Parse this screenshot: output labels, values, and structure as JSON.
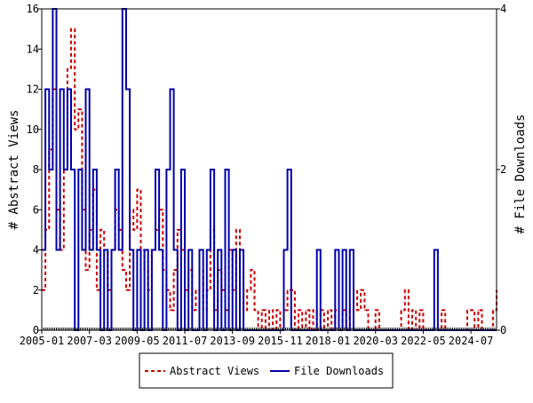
{
  "chart_data": {
    "type": "line",
    "title": "",
    "x_tick_labels": [
      "2005-01",
      "2007-03",
      "2009-05",
      "2011-07",
      "2013-09",
      "2015-11",
      "2018-01",
      "2020-03",
      "2022-05",
      "2024-07"
    ],
    "x_range": [
      "2005-01",
      "2025-09"
    ],
    "ylabel_left": "# Abstract Views",
    "ylabel_right": "# File Downloads",
    "ylim_left": [
      0,
      16
    ],
    "yticks_left": [
      0,
      2,
      4,
      6,
      8,
      10,
      12,
      14,
      16
    ],
    "ylim_right": [
      0,
      4
    ],
    "yticks_right": [
      0,
      2,
      4
    ],
    "grid": false,
    "legend_position": "bottom",
    "series": [
      {
        "name": "Abstract Views",
        "axis": "left",
        "color": "#cc0000",
        "style": "dashed",
        "points": [
          [
            "2005-01",
            2
          ],
          [
            "2005-03",
            5
          ],
          [
            "2005-05",
            9
          ],
          [
            "2005-07",
            12
          ],
          [
            "2005-09",
            6
          ],
          [
            "2005-11",
            4
          ],
          [
            "2006-01",
            8
          ],
          [
            "2006-03",
            13
          ],
          [
            "2006-05",
            15
          ],
          [
            "2006-07",
            10
          ],
          [
            "2006-09",
            11
          ],
          [
            "2006-11",
            6
          ],
          [
            "2007-01",
            3
          ],
          [
            "2007-03",
            5
          ],
          [
            "2007-05",
            7
          ],
          [
            "2007-07",
            2
          ],
          [
            "2007-09",
            5
          ],
          [
            "2007-11",
            4
          ],
          [
            "2008-01",
            2
          ],
          [
            "2008-03",
            4
          ],
          [
            "2008-05",
            6
          ],
          [
            "2008-07",
            5
          ],
          [
            "2008-09",
            3
          ],
          [
            "2008-11",
            2
          ],
          [
            "2009-01",
            6
          ],
          [
            "2009-03",
            5
          ],
          [
            "2009-05",
            7
          ],
          [
            "2009-07",
            4
          ],
          [
            "2009-09",
            3
          ],
          [
            "2009-11",
            2
          ],
          [
            "2010-01",
            4
          ],
          [
            "2010-03",
            5
          ],
          [
            "2010-05",
            6
          ],
          [
            "2010-07",
            3
          ],
          [
            "2010-09",
            2
          ],
          [
            "2010-11",
            1
          ],
          [
            "2011-01",
            3
          ],
          [
            "2011-03",
            5
          ],
          [
            "2011-05",
            4
          ],
          [
            "2011-07",
            2
          ],
          [
            "2011-09",
            3
          ],
          [
            "2011-11",
            1
          ],
          [
            "2012-01",
            2
          ],
          [
            "2012-03",
            3
          ],
          [
            "2012-05",
            1
          ],
          [
            "2012-07",
            2
          ],
          [
            "2012-09",
            5
          ],
          [
            "2012-11",
            1
          ],
          [
            "2013-01",
            3
          ],
          [
            "2013-03",
            2
          ],
          [
            "2013-05",
            1
          ],
          [
            "2013-07",
            4
          ],
          [
            "2013-09",
            2
          ],
          [
            "2013-11",
            5
          ],
          [
            "2014-01",
            3
          ],
          [
            "2014-03",
            1
          ],
          [
            "2014-05",
            2
          ],
          [
            "2014-07",
            3
          ],
          [
            "2014-09",
            1
          ],
          [
            "2014-11",
            0
          ],
          [
            "2015-01",
            1
          ],
          [
            "2015-03",
            0
          ],
          [
            "2015-05",
            1
          ],
          [
            "2015-07",
            0
          ],
          [
            "2015-09",
            1
          ],
          [
            "2015-11",
            0
          ],
          [
            "2016-01",
            1
          ],
          [
            "2016-03",
            2
          ],
          [
            "2016-05",
            2
          ],
          [
            "2016-07",
            0
          ],
          [
            "2016-09",
            1
          ],
          [
            "2016-11",
            0
          ],
          [
            "2017-01",
            1
          ],
          [
            "2017-03",
            0
          ],
          [
            "2017-05",
            1
          ],
          [
            "2017-07",
            0
          ],
          [
            "2017-09",
            1
          ],
          [
            "2017-11",
            0
          ],
          [
            "2018-01",
            1
          ],
          [
            "2018-03",
            0
          ],
          [
            "2018-05",
            1
          ],
          [
            "2018-07",
            0
          ],
          [
            "2018-09",
            1
          ],
          [
            "2018-11",
            0
          ],
          [
            "2019-01",
            1
          ],
          [
            "2019-03",
            2
          ],
          [
            "2019-05",
            1
          ],
          [
            "2019-07",
            2
          ],
          [
            "2019-09",
            1
          ],
          [
            "2019-11",
            0
          ],
          [
            "2020-01",
            0
          ],
          [
            "2020-03",
            1
          ],
          [
            "2020-05",
            0
          ],
          [
            "2020-07",
            0
          ],
          [
            "2020-09",
            0
          ],
          [
            "2020-11",
            0
          ],
          [
            "2021-01",
            0
          ],
          [
            "2021-03",
            0
          ],
          [
            "2021-05",
            1
          ],
          [
            "2021-07",
            2
          ],
          [
            "2021-09",
            0
          ],
          [
            "2021-11",
            1
          ],
          [
            "2022-01",
            0
          ],
          [
            "2022-03",
            1
          ],
          [
            "2022-05",
            0
          ],
          [
            "2022-07",
            0
          ],
          [
            "2022-09",
            0
          ],
          [
            "2022-11",
            0
          ],
          [
            "2023-01",
            0
          ],
          [
            "2023-03",
            1
          ],
          [
            "2023-05",
            0
          ],
          [
            "2023-07",
            0
          ],
          [
            "2023-09",
            0
          ],
          [
            "2023-11",
            0
          ],
          [
            "2024-01",
            0
          ],
          [
            "2024-03",
            0
          ],
          [
            "2024-05",
            1
          ],
          [
            "2024-07",
            1
          ],
          [
            "2024-09",
            0
          ],
          [
            "2024-11",
            1
          ],
          [
            "2025-01",
            0
          ],
          [
            "2025-03",
            0
          ],
          [
            "2025-05",
            0
          ],
          [
            "2025-07",
            1
          ],
          [
            "2025-09",
            2
          ]
        ]
      },
      {
        "name": "File Downloads",
        "axis": "right",
        "color": "#0000aa",
        "style": "solid",
        "points": [
          [
            "2005-01",
            1
          ],
          [
            "2005-03",
            3
          ],
          [
            "2005-05",
            2
          ],
          [
            "2005-07",
            4
          ],
          [
            "2005-09",
            1
          ],
          [
            "2005-11",
            3
          ],
          [
            "2006-01",
            2
          ],
          [
            "2006-03",
            3
          ],
          [
            "2006-05",
            2
          ],
          [
            "2006-07",
            0
          ],
          [
            "2006-09",
            2
          ],
          [
            "2006-11",
            1
          ],
          [
            "2007-01",
            3
          ],
          [
            "2007-03",
            1
          ],
          [
            "2007-05",
            2
          ],
          [
            "2007-07",
            1
          ],
          [
            "2007-09",
            0
          ],
          [
            "2007-11",
            1
          ],
          [
            "2008-01",
            0
          ],
          [
            "2008-03",
            1
          ],
          [
            "2008-05",
            2
          ],
          [
            "2008-07",
            1
          ],
          [
            "2008-09",
            4
          ],
          [
            "2008-11",
            3
          ],
          [
            "2009-01",
            1
          ],
          [
            "2009-03",
            0
          ],
          [
            "2009-05",
            1
          ],
          [
            "2009-07",
            0
          ],
          [
            "2009-09",
            1
          ],
          [
            "2009-11",
            0
          ],
          [
            "2010-01",
            1
          ],
          [
            "2010-03",
            2
          ],
          [
            "2010-05",
            1
          ],
          [
            "2010-07",
            0
          ],
          [
            "2010-09",
            2
          ],
          [
            "2010-11",
            3
          ],
          [
            "2011-01",
            1
          ],
          [
            "2011-03",
            0
          ],
          [
            "2011-05",
            2
          ],
          [
            "2011-07",
            0
          ],
          [
            "2011-09",
            1
          ],
          [
            "2011-11",
            0
          ],
          [
            "2012-01",
            0
          ],
          [
            "2012-03",
            1
          ],
          [
            "2012-05",
            0
          ],
          [
            "2012-07",
            1
          ],
          [
            "2012-09",
            2
          ],
          [
            "2012-11",
            0
          ],
          [
            "2013-01",
            1
          ],
          [
            "2013-03",
            0
          ],
          [
            "2013-05",
            2
          ],
          [
            "2013-07",
            0
          ],
          [
            "2013-09",
            1
          ],
          [
            "2013-11",
            0
          ],
          [
            "2014-01",
            1
          ],
          [
            "2014-03",
            0
          ],
          [
            "2014-05",
            0
          ],
          [
            "2014-07",
            0
          ],
          [
            "2014-09",
            0
          ],
          [
            "2014-11",
            0
          ],
          [
            "2015-01",
            0
          ],
          [
            "2015-03",
            0
          ],
          [
            "2015-05",
            0
          ],
          [
            "2015-07",
            0
          ],
          [
            "2015-09",
            0
          ],
          [
            "2015-11",
            0
          ],
          [
            "2016-01",
            1
          ],
          [
            "2016-03",
            2
          ],
          [
            "2016-05",
            0
          ],
          [
            "2016-07",
            0
          ],
          [
            "2016-09",
            0
          ],
          [
            "2016-11",
            0
          ],
          [
            "2017-01",
            0
          ],
          [
            "2017-03",
            0
          ],
          [
            "2017-05",
            0
          ],
          [
            "2017-07",
            1
          ],
          [
            "2017-09",
            0
          ],
          [
            "2017-11",
            0
          ],
          [
            "2018-01",
            0
          ],
          [
            "2018-03",
            0
          ],
          [
            "2018-05",
            1
          ],
          [
            "2018-07",
            0
          ],
          [
            "2018-09",
            1
          ],
          [
            "2018-11",
            0
          ],
          [
            "2019-01",
            1
          ],
          [
            "2019-03",
            0
          ],
          [
            "2019-05",
            0
          ],
          [
            "2019-07",
            0
          ],
          [
            "2019-09",
            0
          ],
          [
            "2019-11",
            0
          ],
          [
            "2020-01",
            0
          ],
          [
            "2020-03",
            0
          ],
          [
            "2020-05",
            0
          ],
          [
            "2020-07",
            0
          ],
          [
            "2020-09",
            0
          ],
          [
            "2020-11",
            0
          ],
          [
            "2021-01",
            0
          ],
          [
            "2021-03",
            0
          ],
          [
            "2021-05",
            0
          ],
          [
            "2021-07",
            0
          ],
          [
            "2021-09",
            0
          ],
          [
            "2021-11",
            0
          ],
          [
            "2022-01",
            0
          ],
          [
            "2022-03",
            0
          ],
          [
            "2022-05",
            0
          ],
          [
            "2022-07",
            0
          ],
          [
            "2022-09",
            0
          ],
          [
            "2022-11",
            1
          ],
          [
            "2023-01",
            0
          ],
          [
            "2023-03",
            0
          ],
          [
            "2023-05",
            0
          ],
          [
            "2023-07",
            0
          ],
          [
            "2023-09",
            0
          ],
          [
            "2023-11",
            0
          ],
          [
            "2024-01",
            0
          ],
          [
            "2024-03",
            0
          ],
          [
            "2024-05",
            0
          ],
          [
            "2024-07",
            0
          ],
          [
            "2024-09",
            0
          ],
          [
            "2024-11",
            0
          ],
          [
            "2025-01",
            0
          ],
          [
            "2025-03",
            0
          ],
          [
            "2025-05",
            0
          ],
          [
            "2025-07",
            0
          ],
          [
            "2025-09",
            0
          ]
        ]
      }
    ]
  },
  "legend": {
    "abstract_views_label": "Abstract Views",
    "file_downloads_label": "File Downloads"
  }
}
